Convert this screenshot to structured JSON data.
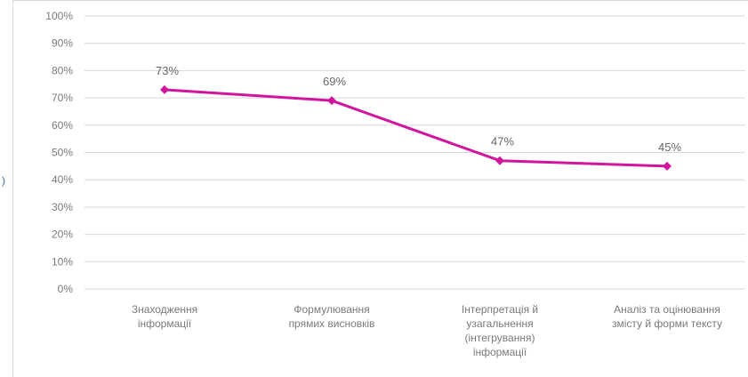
{
  "chart_data": {
    "type": "line",
    "categories": [
      [
        "Знаходження",
        "інформації"
      ],
      [
        "Формулювання",
        "прямих висновків"
      ],
      [
        "Інтерпретація  й",
        "узагальнення",
        "(інтегрування)",
        "інформації"
      ],
      [
        "Аналіз та оцінювання",
        "змісту й форми тексту"
      ]
    ],
    "series": [
      {
        "values": [
          73,
          69,
          47,
          45
        ],
        "color": "#d1169e"
      }
    ],
    "data_labels": [
      "73%",
      "69%",
      "47%",
      "45%"
    ],
    "yticks": [
      "0%",
      "10%",
      "20%",
      "30%",
      "40%",
      "50%",
      "60%",
      "70%",
      "80%",
      "90%",
      "100%"
    ],
    "ylim": [
      0,
      100
    ],
    "grid": true,
    "legend": "none",
    "title": "",
    "xlabel": "",
    "ylabel": ""
  }
}
